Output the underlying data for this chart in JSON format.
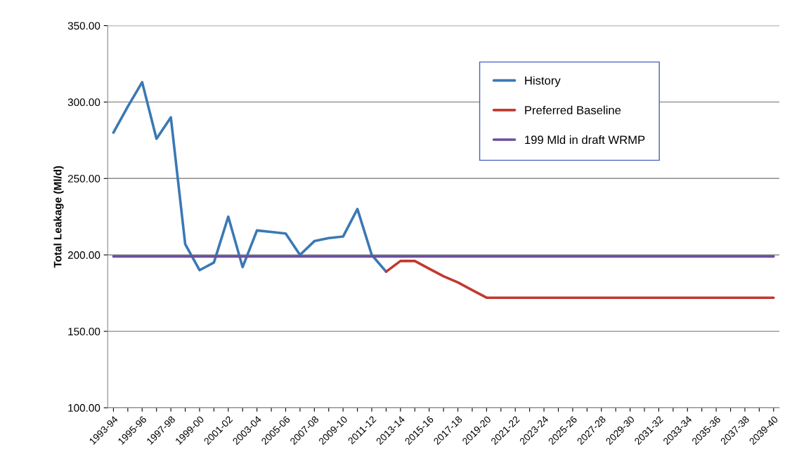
{
  "chart_data": {
    "type": "line",
    "ylabel": "Total Leakage (Ml/d)",
    "categories": [
      "1993-94",
      null,
      "1995-96",
      null,
      "1997-98",
      null,
      "1999-00",
      null,
      "2001-02",
      null,
      "2003-04",
      null,
      "2005-06",
      null,
      "2007-08",
      null,
      "2009-10",
      null,
      "2011-12",
      null,
      "2013-14",
      null,
      "2015-16",
      null,
      "2017-18",
      null,
      "2019-20",
      null,
      "2021-22",
      null,
      "2023-24",
      null,
      "2025-26",
      null,
      "2027-28",
      null,
      "2029-30",
      null,
      "2031-32",
      null,
      "2033-34",
      null,
      "2035-36",
      null,
      "2037-38",
      null,
      "2039-40"
    ],
    "series": [
      {
        "name": "History",
        "color": "#3b78b4",
        "values": [
          280,
          297,
          313,
          276,
          290,
          207,
          190,
          195,
          225,
          192,
          216,
          215,
          214,
          200,
          209,
          211,
          212,
          230,
          200,
          189,
          null,
          null,
          null,
          null,
          null,
          null,
          null,
          null,
          null,
          null,
          null,
          null,
          null,
          null,
          null,
          null,
          null,
          null,
          null,
          null,
          null,
          null,
          null,
          null,
          null,
          null,
          null
        ]
      },
      {
        "name": "Preferred Baseline",
        "color": "#c0392f",
        "values": [
          null,
          null,
          null,
          null,
          null,
          null,
          null,
          null,
          null,
          null,
          null,
          null,
          null,
          null,
          null,
          null,
          null,
          null,
          null,
          189,
          196,
          196,
          191,
          186,
          182,
          177,
          172,
          172,
          172,
          172,
          172,
          172,
          172,
          172,
          172,
          172,
          172,
          172,
          172,
          172,
          172,
          172,
          172,
          172,
          172,
          172,
          172
        ]
      },
      {
        "name": "199 Mld in draft WRMP",
        "color": "#6b4f9e",
        "values": [
          199,
          199,
          199,
          199,
          199,
          199,
          199,
          199,
          199,
          199,
          199,
          199,
          199,
          199,
          199,
          199,
          199,
          199,
          199,
          199,
          199,
          199,
          199,
          199,
          199,
          199,
          199,
          199,
          199,
          199,
          199,
          199,
          199,
          199,
          199,
          199,
          199,
          199,
          199,
          199,
          199,
          199,
          199,
          199,
          199,
          199,
          199
        ]
      }
    ],
    "ylim": [
      100,
      350
    ],
    "yticks": [
      {
        "value": 100,
        "label": "100.00"
      },
      {
        "value": 150,
        "label": "150.00"
      },
      {
        "value": 200,
        "label": "200.00"
      },
      {
        "value": 250,
        "label": "250.00"
      },
      {
        "value": 300,
        "label": "300.00"
      },
      {
        "value": 350,
        "label": "350.00"
      }
    ],
    "grid": "y",
    "legend": "top right",
    "line_style": "solid",
    "marker": "none"
  }
}
